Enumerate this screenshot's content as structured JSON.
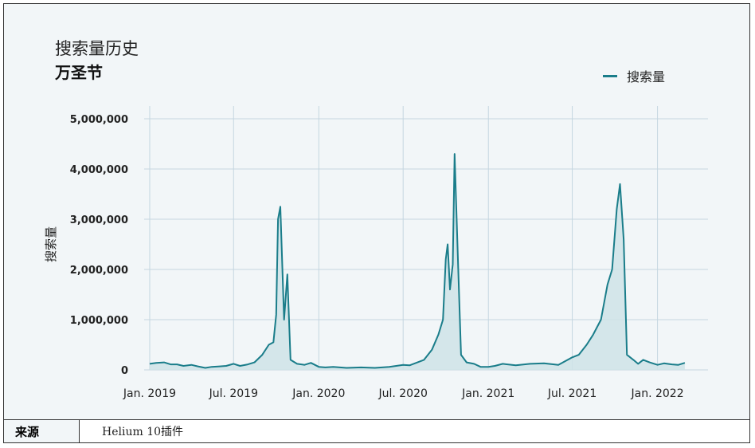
{
  "title": "搜索量历史",
  "subtitle": "万圣节",
  "legend_label": "搜索量",
  "footer": {
    "label": "来源",
    "value": "Helium 10插件"
  },
  "colors": {
    "line": "#1a7d8a",
    "fill": "#cfe3e8",
    "grid": "#c5d6e0",
    "background": "#f2f6f8"
  },
  "chart_data": {
    "type": "area",
    "ylabel": "搜索量",
    "xlabel": "",
    "ylim": [
      0,
      5000000
    ],
    "yticks": [
      0,
      1000000,
      2000000,
      3000000,
      4000000,
      5000000
    ],
    "ytick_labels": [
      "0",
      "1,000,000",
      "2,000,000",
      "3,000,000",
      "4,000,000",
      "5,000,000"
    ],
    "xlim": [
      "2018-12-20",
      "2022-04-20"
    ],
    "xticks": [
      "2019-01-01",
      "2019-07-01",
      "2020-01-01",
      "2020-07-01",
      "2021-01-01",
      "2021-07-01",
      "2022-01-01"
    ],
    "xtick_labels": [
      "Jan. 2019",
      "Jul. 2019",
      "Jan. 2020",
      "Jul. 2020",
      "Jan. 2021",
      "Jul. 2021",
      "Jan. 2022"
    ],
    "grid": true,
    "legend_position": "top-right",
    "series": [
      {
        "name": "搜索量",
        "points": [
          [
            "2019-01-01",
            120000
          ],
          [
            "2019-01-15",
            140000
          ],
          [
            "2019-02-01",
            150000
          ],
          [
            "2019-02-15",
            110000
          ],
          [
            "2019-03-01",
            110000
          ],
          [
            "2019-03-15",
            80000
          ],
          [
            "2019-04-01",
            100000
          ],
          [
            "2019-04-15",
            70000
          ],
          [
            "2019-05-01",
            40000
          ],
          [
            "2019-05-15",
            60000
          ],
          [
            "2019-06-01",
            70000
          ],
          [
            "2019-06-15",
            80000
          ],
          [
            "2019-07-01",
            120000
          ],
          [
            "2019-07-15",
            80000
          ],
          [
            "2019-08-01",
            110000
          ],
          [
            "2019-08-15",
            150000
          ],
          [
            "2019-09-01",
            300000
          ],
          [
            "2019-09-15",
            500000
          ],
          [
            "2019-09-25",
            550000
          ],
          [
            "2019-10-01",
            1100000
          ],
          [
            "2019-10-05",
            3000000
          ],
          [
            "2019-10-10",
            3250000
          ],
          [
            "2019-10-18",
            1000000
          ],
          [
            "2019-10-25",
            1900000
          ],
          [
            "2019-11-01",
            200000
          ],
          [
            "2019-11-15",
            120000
          ],
          [
            "2019-12-01",
            100000
          ],
          [
            "2019-12-15",
            140000
          ],
          [
            "2020-01-01",
            60000
          ],
          [
            "2020-01-15",
            50000
          ],
          [
            "2020-02-01",
            60000
          ],
          [
            "2020-03-01",
            40000
          ],
          [
            "2020-04-01",
            50000
          ],
          [
            "2020-05-01",
            40000
          ],
          [
            "2020-06-01",
            60000
          ],
          [
            "2020-07-01",
            100000
          ],
          [
            "2020-07-15",
            90000
          ],
          [
            "2020-08-01",
            150000
          ],
          [
            "2020-08-15",
            200000
          ],
          [
            "2020-09-01",
            400000
          ],
          [
            "2020-09-15",
            700000
          ],
          [
            "2020-09-25",
            1000000
          ],
          [
            "2020-10-01",
            2200000
          ],
          [
            "2020-10-05",
            2500000
          ],
          [
            "2020-10-10",
            1600000
          ],
          [
            "2020-10-16",
            2100000
          ],
          [
            "2020-10-20",
            4300000
          ],
          [
            "2020-10-28",
            2000000
          ],
          [
            "2020-11-03",
            300000
          ],
          [
            "2020-11-15",
            150000
          ],
          [
            "2020-12-01",
            120000
          ],
          [
            "2020-12-15",
            60000
          ],
          [
            "2021-01-01",
            60000
          ],
          [
            "2021-01-15",
            80000
          ],
          [
            "2021-02-01",
            120000
          ],
          [
            "2021-03-01",
            90000
          ],
          [
            "2021-04-01",
            120000
          ],
          [
            "2021-05-01",
            130000
          ],
          [
            "2021-06-01",
            100000
          ],
          [
            "2021-07-01",
            250000
          ],
          [
            "2021-07-15",
            300000
          ],
          [
            "2021-08-01",
            500000
          ],
          [
            "2021-08-15",
            700000
          ],
          [
            "2021-09-01",
            1000000
          ],
          [
            "2021-09-15",
            1700000
          ],
          [
            "2021-09-25",
            2000000
          ],
          [
            "2021-10-05",
            3200000
          ],
          [
            "2021-10-12",
            3700000
          ],
          [
            "2021-10-20",
            2600000
          ],
          [
            "2021-10-27",
            300000
          ],
          [
            "2021-11-10",
            200000
          ],
          [
            "2021-11-20",
            120000
          ],
          [
            "2021-12-01",
            200000
          ],
          [
            "2021-12-15",
            150000
          ],
          [
            "2022-01-01",
            100000
          ],
          [
            "2022-01-15",
            130000
          ],
          [
            "2022-02-01",
            110000
          ],
          [
            "2022-02-15",
            100000
          ],
          [
            "2022-03-01",
            140000
          ]
        ]
      }
    ]
  }
}
